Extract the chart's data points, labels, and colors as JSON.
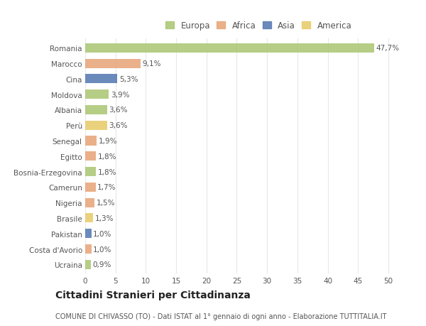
{
  "countries": [
    "Romania",
    "Marocco",
    "Cina",
    "Moldova",
    "Albania",
    "Perù",
    "Senegal",
    "Egitto",
    "Bosnia-Erzegovina",
    "Camerun",
    "Nigeria",
    "Brasile",
    "Pakistan",
    "Costa d'Avorio",
    "Ucraina"
  ],
  "values": [
    47.7,
    9.1,
    5.3,
    3.9,
    3.6,
    3.6,
    1.9,
    1.8,
    1.8,
    1.7,
    1.5,
    1.3,
    1.0,
    1.0,
    0.9
  ],
  "labels": [
    "47,7%",
    "9,1%",
    "5,3%",
    "3,9%",
    "3,6%",
    "3,6%",
    "1,9%",
    "1,8%",
    "1,8%",
    "1,7%",
    "1,5%",
    "1,3%",
    "1,0%",
    "1,0%",
    "0,9%"
  ],
  "colors": [
    "#adc878",
    "#e8a87c",
    "#5b7db5",
    "#adc878",
    "#adc878",
    "#e8cc6e",
    "#e8a87c",
    "#e8a87c",
    "#adc878",
    "#e8a87c",
    "#e8a87c",
    "#e8cc6e",
    "#5b7db5",
    "#e8a87c",
    "#adc878"
  ],
  "legend_labels": [
    "Europa",
    "Africa",
    "Asia",
    "America"
  ],
  "legend_colors": [
    "#adc878",
    "#e8a87c",
    "#5b7db5",
    "#e8cc6e"
  ],
  "title": "Cittadini Stranieri per Cittadinanza",
  "subtitle": "COMUNE DI CHIVASSO (TO) - Dati ISTAT al 1° gennaio di ogni anno - Elaborazione TUTTITALIA.IT",
  "xlim": [
    0,
    52
  ],
  "xticks": [
    0,
    5,
    10,
    15,
    20,
    25,
    30,
    35,
    40,
    45,
    50
  ],
  "bg_color": "#ffffff",
  "grid_color": "#e8e8e8",
  "bar_height": 0.6,
  "label_fontsize": 7.5,
  "tick_fontsize": 7.5,
  "title_fontsize": 10,
  "subtitle_fontsize": 7
}
